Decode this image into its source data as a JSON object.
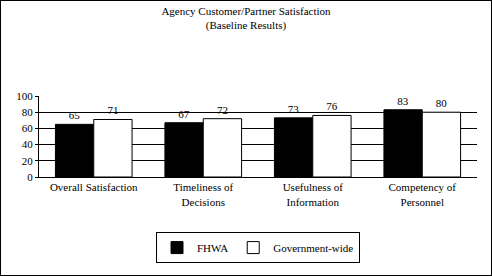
{
  "chart_data": {
    "type": "bar",
    "title": "Agency Customer/Partner Satisfaction",
    "subtitle": "(Baseline Results)",
    "categories": [
      "Overall Satisfaction",
      "Timeliness of Decisions",
      "Usefulness of Information",
      "Competency of Personnel"
    ],
    "series": [
      {
        "name": "FHWA",
        "color": "#000000",
        "values": [
          65,
          67,
          73,
          83
        ]
      },
      {
        "name": "Government-wide",
        "color": "#ffffff",
        "values": [
          71,
          72,
          76,
          80
        ]
      }
    ],
    "ylim": [
      0,
      100
    ],
    "yticks": [
      0,
      20,
      40,
      60,
      80,
      100
    ],
    "grid": true,
    "legend": "bottom",
    "data_labels": true
  }
}
